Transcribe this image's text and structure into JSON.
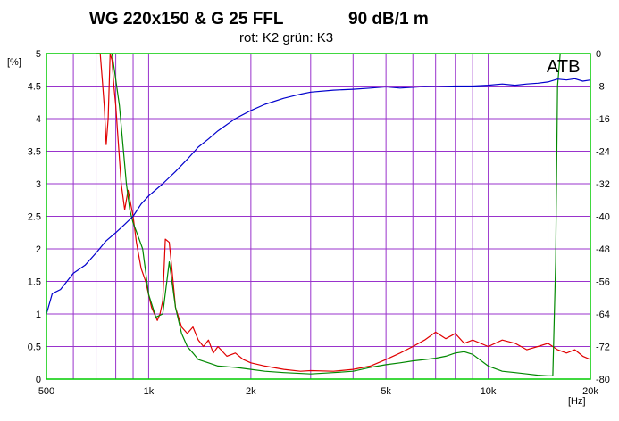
{
  "chart_data": {
    "type": "line",
    "title": "WG 220x150 & G 25 FFL",
    "title_level": "90 dB/1 m",
    "subtitle": "rot: K2   grün: K3",
    "watermark": "ATB",
    "x_unit": "[Hz]",
    "y_left_unit": "[%]",
    "x_scale": "log",
    "xlim": [
      500,
      20000
    ],
    "ylim_left": [
      0,
      5
    ],
    "ylim_right": [
      -80,
      0
    ],
    "x_ticks": [
      {
        "value": 500,
        "label": "500"
      },
      {
        "value": 1000,
        "label": "1k"
      },
      {
        "value": 2000,
        "label": "2k"
      },
      {
        "value": 5000,
        "label": "5k"
      },
      {
        "value": 10000,
        "label": "10k"
      },
      {
        "value": 20000,
        "label": "20k"
      }
    ],
    "x_minor_grid": [
      600,
      700,
      800,
      900,
      3000,
      4000,
      6000,
      7000,
      8000,
      9000,
      15000
    ],
    "y_left_ticks": [
      "0",
      "0.5",
      "1",
      "1.5",
      "2",
      "2.5",
      "3",
      "3.5",
      "4",
      "4.5",
      "5"
    ],
    "y_right_ticks": [
      "-80",
      "-72",
      "-64",
      "-56",
      "-48",
      "-40",
      "-32",
      "-24",
      "-16",
      "-8",
      "0"
    ],
    "grid": true,
    "colors": {
      "background": "#ffffff",
      "plot_border": "#00cc00",
      "grid": "#9933cc",
      "k2": "#e00000",
      "k3": "#008800",
      "spl": "#0000cc"
    },
    "series": [
      {
        "name": "rot: K2",
        "axis": "left",
        "color": "#e00000",
        "points": [
          [
            700,
            5
          ],
          [
            720,
            5
          ],
          [
            730,
            4.6
          ],
          [
            740,
            4.2
          ],
          [
            750,
            3.6
          ],
          [
            760,
            4.0
          ],
          [
            770,
            5.0
          ],
          [
            780,
            4.9
          ],
          [
            790,
            4.5
          ],
          [
            800,
            4.2
          ],
          [
            810,
            3.8
          ],
          [
            830,
            3.0
          ],
          [
            850,
            2.6
          ],
          [
            870,
            2.9
          ],
          [
            900,
            2.5
          ],
          [
            920,
            2.1
          ],
          [
            950,
            1.7
          ],
          [
            980,
            1.5
          ],
          [
            1000,
            1.3
          ],
          [
            1020,
            1.1
          ],
          [
            1040,
            1.0
          ],
          [
            1060,
            0.9
          ],
          [
            1080,
            1.0
          ],
          [
            1100,
            1.2
          ],
          [
            1120,
            2.15
          ],
          [
            1150,
            2.1
          ],
          [
            1170,
            1.7
          ],
          [
            1200,
            1.1
          ],
          [
            1250,
            0.8
          ],
          [
            1300,
            0.7
          ],
          [
            1350,
            0.8
          ],
          [
            1400,
            0.6
          ],
          [
            1450,
            0.5
          ],
          [
            1500,
            0.6
          ],
          [
            1550,
            0.4
          ],
          [
            1600,
            0.5
          ],
          [
            1700,
            0.35
          ],
          [
            1800,
            0.4
          ],
          [
            1900,
            0.3
          ],
          [
            2000,
            0.25
          ],
          [
            2200,
            0.2
          ],
          [
            2500,
            0.15
          ],
          [
            2800,
            0.12
          ],
          [
            3000,
            0.13
          ],
          [
            3500,
            0.12
          ],
          [
            4000,
            0.15
          ],
          [
            4500,
            0.2
          ],
          [
            5000,
            0.3
          ],
          [
            5500,
            0.4
          ],
          [
            6000,
            0.5
          ],
          [
            6500,
            0.6
          ],
          [
            7000,
            0.72
          ],
          [
            7500,
            0.62
          ],
          [
            8000,
            0.7
          ],
          [
            8500,
            0.55
          ],
          [
            9000,
            0.6
          ],
          [
            10000,
            0.5
          ],
          [
            11000,
            0.6
          ],
          [
            12000,
            0.55
          ],
          [
            13000,
            0.45
          ],
          [
            14000,
            0.5
          ],
          [
            15000,
            0.55
          ],
          [
            16000,
            0.45
          ],
          [
            17000,
            0.4
          ],
          [
            18000,
            0.45
          ],
          [
            19000,
            0.35
          ],
          [
            20000,
            0.3
          ]
        ]
      },
      {
        "name": "grün: K3",
        "axis": "left",
        "color": "#008800",
        "points": [
          [
            700,
            5
          ],
          [
            750,
            5
          ],
          [
            780,
            5.0
          ],
          [
            800,
            4.6
          ],
          [
            820,
            4.2
          ],
          [
            840,
            3.6
          ],
          [
            860,
            3.0
          ],
          [
            880,
            2.6
          ],
          [
            900,
            2.4
          ],
          [
            930,
            2.2
          ],
          [
            960,
            2.0
          ],
          [
            1000,
            1.3
          ],
          [
            1050,
            0.95
          ],
          [
            1100,
            1.0
          ],
          [
            1150,
            1.8
          ],
          [
            1200,
            1.1
          ],
          [
            1250,
            0.7
          ],
          [
            1300,
            0.5
          ],
          [
            1350,
            0.4
          ],
          [
            1400,
            0.3
          ],
          [
            1500,
            0.25
          ],
          [
            1600,
            0.2
          ],
          [
            1800,
            0.18
          ],
          [
            2000,
            0.15
          ],
          [
            2200,
            0.12
          ],
          [
            2500,
            0.1
          ],
          [
            3000,
            0.08
          ],
          [
            3500,
            0.1
          ],
          [
            4000,
            0.12
          ],
          [
            4500,
            0.18
          ],
          [
            5000,
            0.22
          ],
          [
            5500,
            0.25
          ],
          [
            6000,
            0.28
          ],
          [
            6500,
            0.3
          ],
          [
            7000,
            0.32
          ],
          [
            7500,
            0.35
          ],
          [
            8000,
            0.4
          ],
          [
            8500,
            0.42
          ],
          [
            9000,
            0.38
          ],
          [
            10000,
            0.2
          ],
          [
            11000,
            0.12
          ],
          [
            12000,
            0.1
          ],
          [
            13000,
            0.08
          ],
          [
            14000,
            0.06
          ],
          [
            15000,
            0.05
          ],
          [
            15500,
            0.05
          ],
          [
            15800,
            1.8
          ],
          [
            16000,
            4.5
          ],
          [
            16300,
            5
          ]
        ]
      },
      {
        "name": "SPL",
        "axis": "right",
        "color": "#0000cc",
        "points": [
          [
            500,
            -64
          ],
          [
            520,
            -59
          ],
          [
            550,
            -58
          ],
          [
            600,
            -54
          ],
          [
            650,
            -52
          ],
          [
            700,
            -49
          ],
          [
            750,
            -46
          ],
          [
            800,
            -44
          ],
          [
            850,
            -42
          ],
          [
            900,
            -40
          ],
          [
            950,
            -37
          ],
          [
            1000,
            -35
          ],
          [
            1100,
            -32
          ],
          [
            1200,
            -29
          ],
          [
            1300,
            -26
          ],
          [
            1400,
            -23
          ],
          [
            1500,
            -21
          ],
          [
            1600,
            -19
          ],
          [
            1800,
            -16
          ],
          [
            2000,
            -14
          ],
          [
            2200,
            -12.5
          ],
          [
            2500,
            -11
          ],
          [
            2800,
            -10
          ],
          [
            3000,
            -9.5
          ],
          [
            3500,
            -9
          ],
          [
            4000,
            -8.8
          ],
          [
            4500,
            -8.5
          ],
          [
            5000,
            -8.2
          ],
          [
            5500,
            -8.5
          ],
          [
            6000,
            -8.3
          ],
          [
            6500,
            -8.1
          ],
          [
            7000,
            -8.2
          ],
          [
            8000,
            -8
          ],
          [
            9000,
            -8
          ],
          [
            10000,
            -7.8
          ],
          [
            11000,
            -7.5
          ],
          [
            12000,
            -7.8
          ],
          [
            13000,
            -7.5
          ],
          [
            14000,
            -7.3
          ],
          [
            15000,
            -7
          ],
          [
            16000,
            -6.3
          ],
          [
            17000,
            -6.5
          ],
          [
            18000,
            -6.2
          ],
          [
            19000,
            -6.8
          ],
          [
            20000,
            -6.5
          ]
        ]
      }
    ]
  }
}
